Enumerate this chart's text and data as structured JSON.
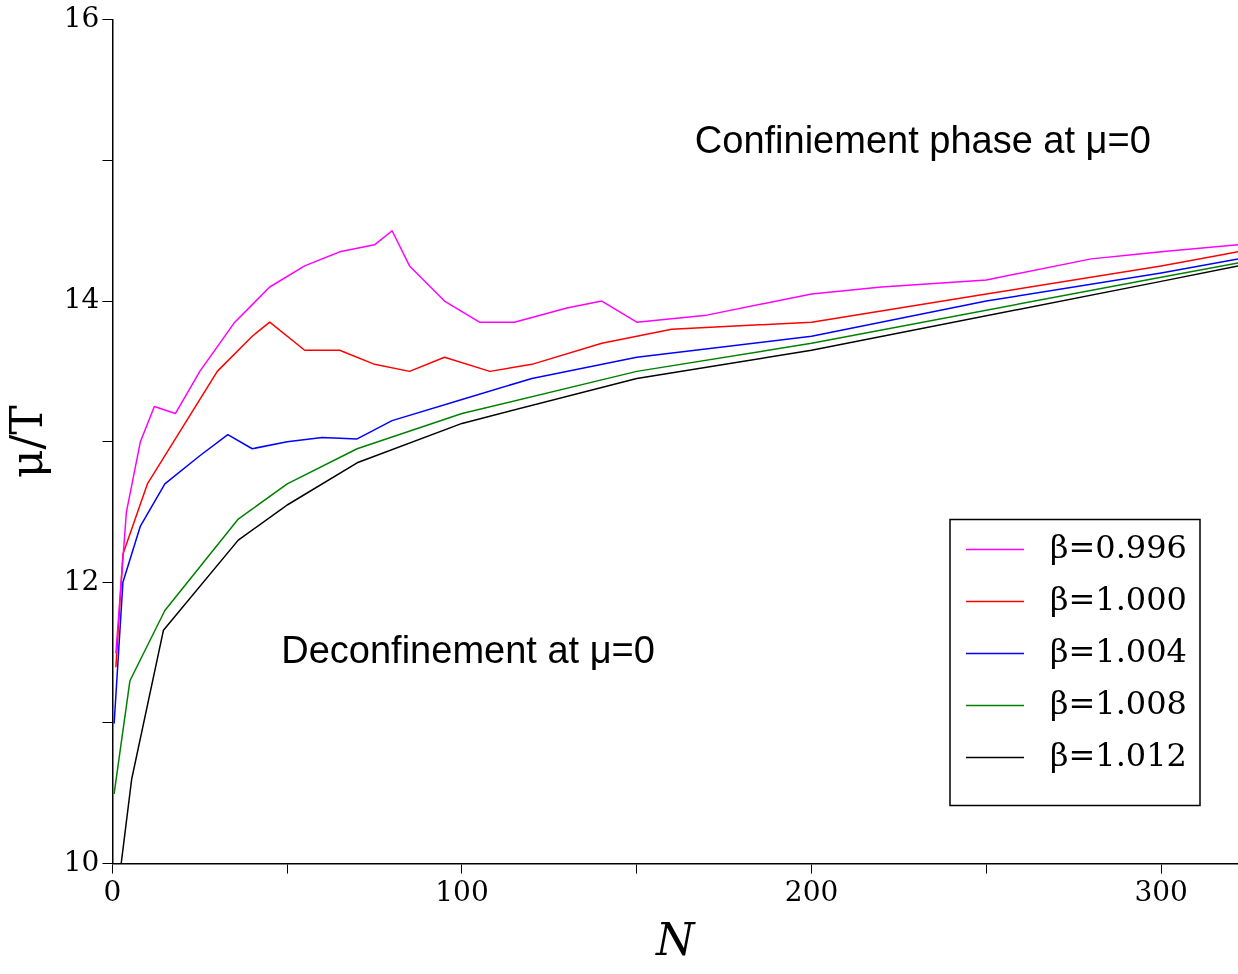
{
  "chart_data": {
    "type": "line",
    "xlabel": "N",
    "ylabel": "μ/T",
    "xlim": [
      0,
      322
    ],
    "ylim": [
      10,
      16
    ],
    "xticks": [
      0,
      {
        "value": 50,
        "label": null
      },
      100,
      {
        "value": 150,
        "label": null
      },
      200,
      {
        "value": 250,
        "label": null
      },
      300
    ],
    "yticks": [
      10,
      {
        "value": 11,
        "label": null
      },
      12,
      {
        "value": 13,
        "label": null
      },
      14,
      {
        "value": 15,
        "label": null
      },
      16
    ],
    "grid": false,
    "legend": "bottom right",
    "marker": "none",
    "line_style": "solid",
    "annotations": [
      "Confiniement phase at μ=0",
      "Deconfinement at μ=0"
    ],
    "series": [
      {
        "name": "β=0.996",
        "color": "#ff00ff",
        "x": [
          1,
          4,
          8,
          12,
          18,
          25,
          35,
          45,
          55,
          65,
          75,
          80,
          85,
          95,
          105,
          115,
          130,
          140,
          150,
          170,
          200,
          220,
          250,
          280,
          300,
          322
        ],
        "values": [
          11.5,
          12.5,
          13.0,
          13.25,
          13.2,
          13.5,
          13.85,
          14.1,
          14.25,
          14.35,
          14.4,
          14.5,
          14.25,
          14.0,
          13.85,
          13.85,
          13.95,
          14.0,
          13.85,
          13.9,
          14.05,
          14.1,
          14.15,
          14.3,
          14.35,
          14.4
        ]
      },
      {
        "name": "β=1.000",
        "color": "#ff0000",
        "x": [
          1,
          3,
          10,
          20,
          30,
          40,
          45,
          55,
          65,
          75,
          85,
          95,
          108,
          120,
          140,
          160,
          200,
          250,
          300,
          322
        ],
        "values": [
          11.4,
          12.2,
          12.7,
          13.1,
          13.5,
          13.75,
          13.85,
          13.65,
          13.65,
          13.55,
          13.5,
          13.6,
          13.5,
          13.55,
          13.7,
          13.8,
          13.85,
          14.05,
          14.25,
          14.35
        ]
      },
      {
        "name": "β=1.004",
        "color": "#0000ff",
        "x": [
          0.5,
          3,
          8,
          15,
          25,
          33,
          40,
          50,
          60,
          70,
          80,
          100,
          120,
          150,
          200,
          250,
          300,
          322
        ],
        "values": [
          11.0,
          12.0,
          12.4,
          12.7,
          12.9,
          13.05,
          12.95,
          13.0,
          13.03,
          13.02,
          13.15,
          13.3,
          13.45,
          13.6,
          13.75,
          14.0,
          14.2,
          14.3
        ]
      },
      {
        "name": "β=1.008",
        "color": "#008000",
        "x": [
          0.5,
          5,
          15,
          36,
          50,
          70,
          100,
          150,
          200,
          300,
          322
        ],
        "values": [
          10.5,
          11.3,
          11.8,
          12.45,
          12.7,
          12.95,
          13.2,
          13.5,
          13.7,
          14.17,
          14.27
        ]
      },
      {
        "name": "β=1.012",
        "color": "#000000",
        "x": [
          2.5,
          5.5,
          14.6,
          36,
          50,
          70,
          100,
          150,
          200,
          300,
          322
        ],
        "values": [
          10.0,
          10.6,
          11.66,
          12.3,
          12.55,
          12.85,
          13.13,
          13.45,
          13.65,
          14.14,
          14.25
        ]
      }
    ]
  }
}
